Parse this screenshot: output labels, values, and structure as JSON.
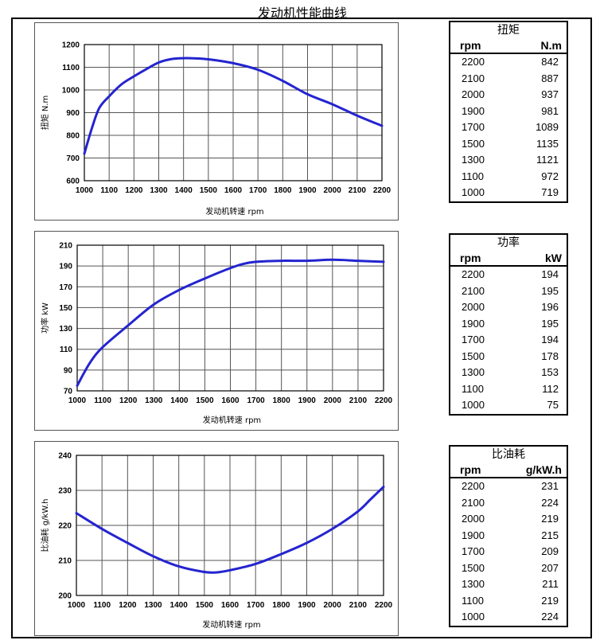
{
  "page": {
    "title": "发动机性能曲线"
  },
  "colors": {
    "line": "#2424d0",
    "grid": "#555555",
    "axis": "#000000"
  },
  "chart_data": [
    {
      "type": "line",
      "ylabel": "扭矩 N.m",
      "xlabel": "发动机转速  rpm",
      "xlim": [
        1000,
        2200
      ],
      "ylim": [
        600,
        1200
      ],
      "x_ticks": [
        1000,
        1100,
        1200,
        1300,
        1400,
        1500,
        1600,
        1700,
        1800,
        1900,
        2000,
        2100,
        2200
      ],
      "y_ticks": [
        600,
        700,
        800,
        900,
        1000,
        1100,
        1200
      ],
      "grid": true,
      "curve": [
        [
          1000,
          719
        ],
        [
          1030,
          830
        ],
        [
          1060,
          920
        ],
        [
          1100,
          972
        ],
        [
          1150,
          1025
        ],
        [
          1200,
          1060
        ],
        [
          1250,
          1092
        ],
        [
          1300,
          1121
        ],
        [
          1350,
          1136
        ],
        [
          1400,
          1140
        ],
        [
          1450,
          1139
        ],
        [
          1500,
          1135
        ],
        [
          1600,
          1118
        ],
        [
          1700,
          1089
        ],
        [
          1800,
          1040
        ],
        [
          1900,
          981
        ],
        [
          2000,
          937
        ],
        [
          2100,
          887
        ],
        [
          2200,
          842
        ]
      ],
      "table": {
        "title": "扭矩",
        "col_x": "rpm",
        "col_y": "N.m",
        "rows": [
          [
            "2200",
            "842"
          ],
          [
            "2100",
            "887"
          ],
          [
            "2000",
            "937"
          ],
          [
            "1900",
            "981"
          ],
          [
            "1700",
            "1089"
          ],
          [
            "1500",
            "1135"
          ],
          [
            "1300",
            "1121"
          ],
          [
            "1100",
            "972"
          ],
          [
            "1000",
            "719"
          ]
        ]
      }
    },
    {
      "type": "line",
      "ylabel": "功率 kW",
      "xlabel": "发动机转速 rpm",
      "xlim": [
        1000,
        2200
      ],
      "ylim": [
        70,
        210
      ],
      "x_ticks": [
        1000,
        1100,
        1200,
        1300,
        1400,
        1500,
        1600,
        1700,
        1800,
        1900,
        2000,
        2100,
        2200
      ],
      "y_ticks": [
        70,
        90,
        110,
        130,
        150,
        170,
        190,
        210
      ],
      "grid": true,
      "curve": [
        [
          1000,
          75
        ],
        [
          1050,
          97
        ],
        [
          1100,
          112
        ],
        [
          1200,
          133
        ],
        [
          1300,
          153
        ],
        [
          1400,
          167
        ],
        [
          1500,
          178
        ],
        [
          1600,
          188
        ],
        [
          1650,
          192
        ],
        [
          1700,
          194
        ],
        [
          1800,
          195
        ],
        [
          1900,
          195
        ],
        [
          2000,
          196
        ],
        [
          2100,
          195
        ],
        [
          2200,
          194
        ]
      ],
      "table": {
        "title": "功率",
        "col_x": "rpm",
        "col_y": "kW",
        "rows": [
          [
            "2200",
            "194"
          ],
          [
            "2100",
            "195"
          ],
          [
            "2000",
            "196"
          ],
          [
            "1900",
            "195"
          ],
          [
            "1700",
            "194"
          ],
          [
            "1500",
            "178"
          ],
          [
            "1300",
            "153"
          ],
          [
            "1100",
            "112"
          ],
          [
            "1000",
            "75"
          ]
        ]
      }
    },
    {
      "type": "line",
      "ylabel": "比油耗 g/kW.h",
      "xlabel": "发动机转速  rpm",
      "xlim": [
        1000,
        2200
      ],
      "ylim": [
        200,
        240
      ],
      "x_ticks": [
        1000,
        1100,
        1200,
        1300,
        1400,
        1500,
        1600,
        1700,
        1800,
        1900,
        2000,
        2100,
        2200
      ],
      "y_ticks": [
        200,
        210,
        220,
        230,
        240
      ],
      "grid": true,
      "curve": [
        [
          1000,
          223.5
        ],
        [
          1100,
          219
        ],
        [
          1200,
          215
        ],
        [
          1300,
          211.2
        ],
        [
          1400,
          208.3
        ],
        [
          1500,
          206.7
        ],
        [
          1550,
          206.6
        ],
        [
          1600,
          207.2
        ],
        [
          1700,
          209
        ],
        [
          1800,
          211.8
        ],
        [
          1900,
          215
        ],
        [
          2000,
          219
        ],
        [
          2100,
          224
        ],
        [
          2150,
          227.5
        ],
        [
          2200,
          231
        ]
      ],
      "table": {
        "title": "比油耗",
        "col_x": "rpm",
        "col_y": "g/kW.h",
        "rows": [
          [
            "2200",
            "231"
          ],
          [
            "2100",
            "224"
          ],
          [
            "2000",
            "219"
          ],
          [
            "1900",
            "215"
          ],
          [
            "1700",
            "209"
          ],
          [
            "1500",
            "207"
          ],
          [
            "1300",
            "211"
          ],
          [
            "1100",
            "219"
          ],
          [
            "1000",
            "224"
          ]
        ]
      }
    }
  ]
}
